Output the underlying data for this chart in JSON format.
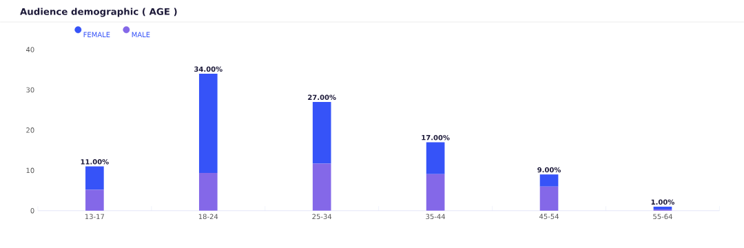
{
  "chart_data": {
    "type": "bar",
    "title": "Audience demographic ( AGE )",
    "stacked": true,
    "legend": "top left",
    "categories": [
      "13-17",
      "18-24",
      "25-34",
      "35-44",
      "45-54",
      "55-64"
    ],
    "series": [
      {
        "name": "MALE",
        "color": "#8468e8",
        "values": [
          5.2,
          9.4,
          11.7,
          9.1,
          6,
          0.3
        ]
      },
      {
        "name": "FEMALE",
        "color": "#3653f8",
        "values": [
          5.8,
          24.6,
          15.3,
          7.9,
          3,
          0.7
        ]
      }
    ],
    "totals": [
      "11.00%",
      "34.00%",
      "27.00%",
      "17.00%",
      "9.00%",
      "1.00%"
    ],
    "ylim": [
      0,
      40
    ],
    "yticks": [
      0,
      10,
      20,
      30,
      40
    ],
    "grid": false
  }
}
